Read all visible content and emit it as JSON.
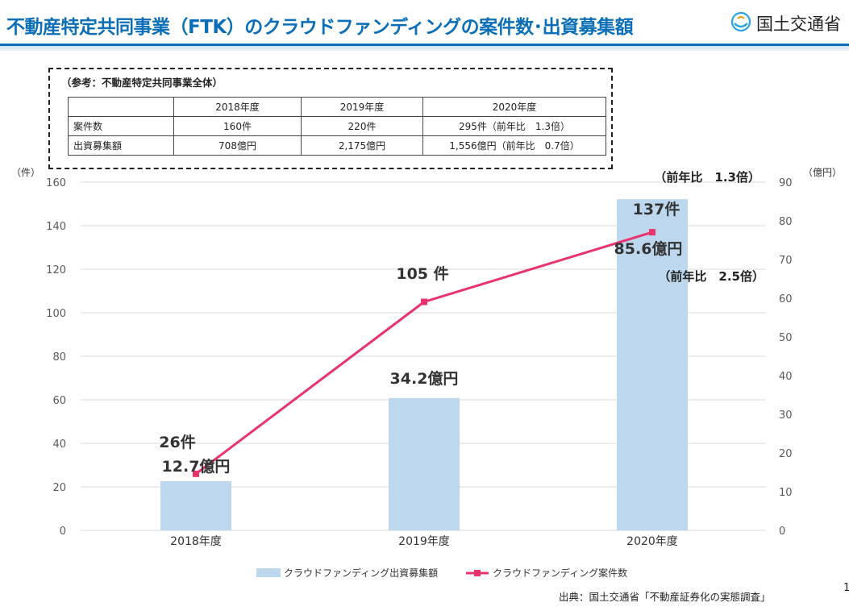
{
  "header": {
    "title": "不動産特定共同事業（FTK）のクラウドファンディングの案件数･出資募集額",
    "org": "国土交通省"
  },
  "reference": {
    "title": "（参考：不動産特定共同事業全体）",
    "columns": [
      "",
      "2018年度",
      "2019年度",
      "2020年度"
    ],
    "rows": [
      [
        "案件数",
        "160件",
        "220件",
        "295件（前年比　1.3倍）"
      ],
      [
        "出資募集額",
        "708億円",
        "2,175億円",
        "1,556億円（前年比　0.7倍）"
      ]
    ]
  },
  "chart_data": {
    "type": "bar+line",
    "categories": [
      "2018年度",
      "2019年度",
      "2020年度"
    ],
    "left_axis": {
      "unit": "（件）",
      "ylim": [
        0,
        160
      ],
      "ticks": [
        0,
        20,
        40,
        60,
        80,
        100,
        120,
        140,
        160
      ]
    },
    "right_axis": {
      "unit": "（億円）",
      "ylim": [
        0,
        90
      ],
      "ticks": [
        0,
        10,
        20,
        30,
        40,
        50,
        60,
        70,
        80,
        90
      ]
    },
    "series": [
      {
        "name": "クラウドファンディング出資募集額",
        "kind": "bar",
        "axis": "right",
        "values": [
          12.7,
          34.2,
          85.6
        ],
        "color": "#bdd7ee",
        "labels": [
          "12.7億円",
          "34.2億円",
          "85.6億円"
        ]
      },
      {
        "name": "クラウドファンディング案件数",
        "kind": "line",
        "axis": "left",
        "values": [
          26,
          105,
          137
        ],
        "color": "#e8336d",
        "labels": [
          "26件",
          "105 件",
          "137件"
        ]
      }
    ],
    "annotations": [
      "（前年比　1.3倍）",
      "（前年比　2.5倍）"
    ],
    "grid": true,
    "legend": "bottom"
  },
  "footer": {
    "source": "出典：国土交通省「不動産証券化の実態調査」",
    "page": "1"
  }
}
